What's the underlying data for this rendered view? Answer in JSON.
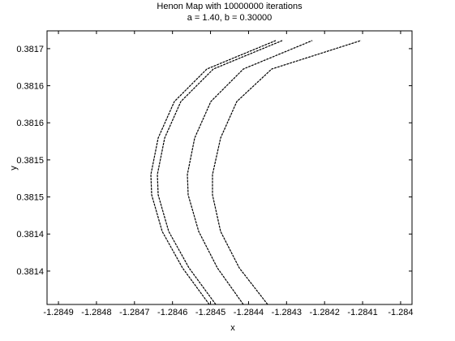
{
  "chart_data": {
    "type": "line",
    "title": "Henon Map with 10000000 iterations",
    "subtitle": "a = 1.40, b = 0.30000",
    "x_label": "x",
    "y_label": "y",
    "xlim": [
      -1.28493,
      -1.28397
    ],
    "ylim": [
      0.381355,
      0.381724
    ],
    "xticks": [
      -1.2849,
      -1.2848,
      -1.2847,
      -1.2846,
      -1.2845,
      -1.2844,
      -1.2843,
      -1.2842,
      -1.2841,
      -1.284
    ],
    "yticks": [
      {
        "value": 0.3817,
        "label": "0.3817"
      },
      {
        "value": 0.38165,
        "label": "0.3816"
      },
      {
        "value": 0.3816,
        "label": "0.3816"
      },
      {
        "value": 0.38155,
        "label": "0.3815"
      },
      {
        "value": 0.3815,
        "label": "0.3815"
      },
      {
        "value": 0.38145,
        "label": "0.3814"
      },
      {
        "value": 0.3814,
        "label": "0.3814"
      }
    ],
    "series": [
      {
        "color": "#000000",
        "x": [
          -1.2845033,
          -1.2845737,
          -1.2846271,
          -1.2846548,
          -1.2846569,
          -1.2846377,
          -1.2845951,
          -1.2845097,
          -1.2843284
        ],
        "y": [
          0.381355,
          0.3814043,
          0.3814535,
          0.3815028,
          0.3815302,
          0.3815795,
          0.3816287,
          0.3816725,
          0.3817109
        ]
      },
      {
        "color": "#000000",
        "x": [
          -1.2844862,
          -1.2845566,
          -1.28461,
          -1.2846377,
          -1.2846398,
          -1.2846206,
          -1.284578,
          -1.2844926,
          -1.2843113
        ],
        "y": [
          0.381355,
          0.3814043,
          0.3814535,
          0.3815028,
          0.3815302,
          0.3815795,
          0.3816287,
          0.3816725,
          0.3817109
        ]
      },
      {
        "color": "#000000",
        "x": [
          -1.2844137,
          -1.284482,
          -1.2845311,
          -1.2845588,
          -1.2845609,
          -1.2845417,
          -1.2844991,
          -1.2844137,
          -1.2842324
        ],
        "y": [
          0.381355,
          0.3814043,
          0.3814535,
          0.3815028,
          0.3815302,
          0.3815795,
          0.3816287,
          0.3816725,
          0.3817109
        ]
      },
      {
        "color": "#000000",
        "x": [
          -1.2843497,
          -1.2844244,
          -1.2844735,
          -1.2844948,
          -1.2844948,
          -1.2844735,
          -1.2844308,
          -1.2843391,
          -1.2841044
        ],
        "y": [
          0.381355,
          0.3814043,
          0.3814535,
          0.3815028,
          0.3815302,
          0.3815795,
          0.3816287,
          0.3816725,
          0.3817109
        ]
      }
    ]
  }
}
